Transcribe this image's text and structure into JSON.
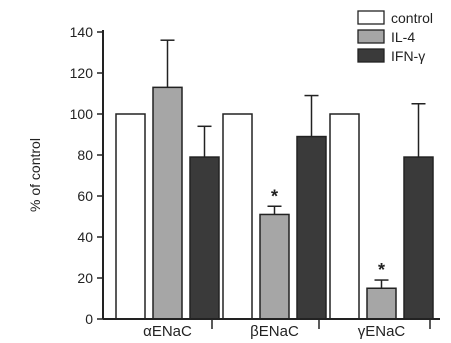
{
  "chart_data": {
    "type": "bar",
    "ylabel": "% of control",
    "ylim": [
      0,
      140
    ],
    "yticks": [
      0,
      20,
      40,
      60,
      80,
      100,
      120,
      140
    ],
    "categories": [
      "αENaC",
      "βENaC",
      "γENaC"
    ],
    "series": [
      {
        "name": "control",
        "values": [
          100,
          100,
          100
        ],
        "errors": [
          0,
          0,
          0
        ],
        "color": "#ffffff",
        "significant": [
          false,
          false,
          false
        ]
      },
      {
        "name": "IL-4",
        "values": [
          113,
          51,
          15
        ],
        "errors": [
          23,
          4,
          4
        ],
        "color": "#a6a6a6",
        "significant": [
          false,
          true,
          true
        ]
      },
      {
        "name": "IFN-γ",
        "values": [
          79,
          89,
          79
        ],
        "errors": [
          15,
          20,
          26
        ],
        "color": "#3a3a3a",
        "significant": [
          false,
          false,
          false
        ]
      }
    ],
    "annotation_symbol": "*",
    "legend_position": "top-right"
  }
}
